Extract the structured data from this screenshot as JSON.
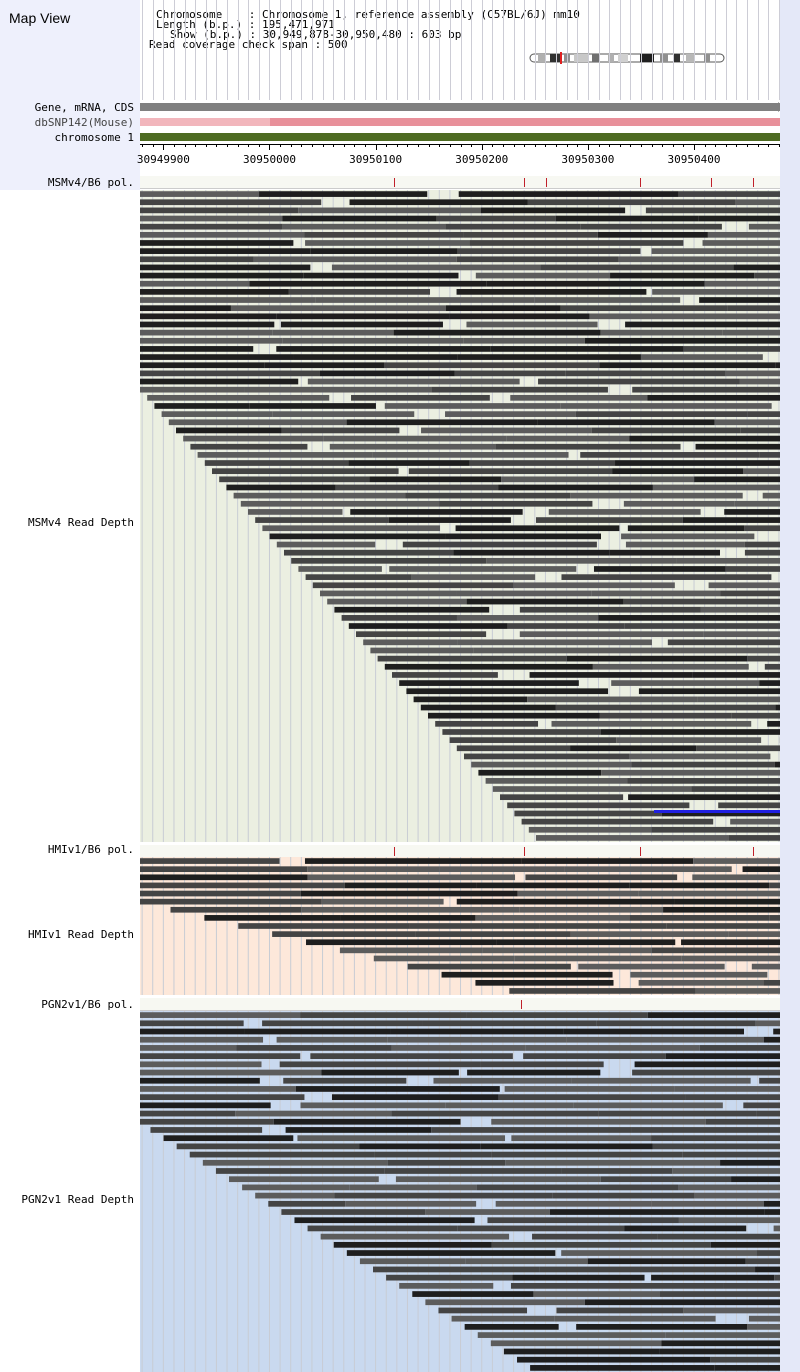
{
  "header": {
    "title": "Map View",
    "chromosome_line": "Chromosome    : Chromosome 1, reference assembly (C57BL/6J) mm10",
    "length_line": "Length (b.p.) : 195,471,971",
    "show_line": "Show (b.p.) : 30,949,878-30,950,480 : 603 bp",
    "coverage_line": "Read coverage check span : 500"
  },
  "tracks": {
    "gene": "Gene, mRNA, CDS",
    "snp": "dbSNP142(Mouse)",
    "chromosome": "chromosome 1"
  },
  "ruler": {
    "ticks": [
      "30949900",
      "30950000",
      "30950100",
      "30950200",
      "30950300",
      "30950400"
    ]
  },
  "strains": [
    {
      "pol_label": "MSMv4/B6 pol.",
      "depth_label": "MSMv4 Read Depth",
      "bg": "#ebefe1"
    },
    {
      "pol_label": "HMIv1/B6 pol.",
      "depth_label": "HMIv1 Read Depth",
      "bg": "#fde8da"
    },
    {
      "pol_label": "PGN2v1/B6 pol.",
      "depth_label": "PGN2v1 Read Depth",
      "bg": "#c9d9ef"
    }
  ],
  "colors": {
    "gene_bar": "#808080",
    "snp_bar": "#e8909a",
    "chromosome_bar": "#4e6b22",
    "snp_marker": "#c0202a",
    "highlight_read": "#2020e0"
  }
}
